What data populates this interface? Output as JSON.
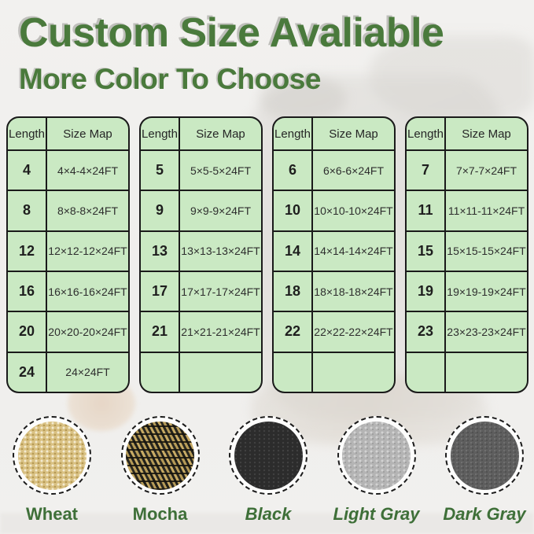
{
  "header": {
    "title": "Custom Size Avaliable",
    "subtitle": "More Color To Choose"
  },
  "tables": [
    {
      "columns": [
        "Length",
        "Size Map"
      ],
      "rows": [
        [
          "4",
          "4×4-4×24FT"
        ],
        [
          "8",
          "8×8-8×24FT"
        ],
        [
          "12",
          "12×12-12×24FT"
        ],
        [
          "16",
          "16×16-16×24FT"
        ],
        [
          "20",
          "20×20-20×24FT"
        ],
        [
          "24",
          "24×24FT"
        ]
      ]
    },
    {
      "columns": [
        "Length",
        "Size Map"
      ],
      "rows": [
        [
          "5",
          "5×5-5×24FT"
        ],
        [
          "9",
          "9×9-9×24FT"
        ],
        [
          "13",
          "13×13-13×24FT"
        ],
        [
          "17",
          "17×17-17×24FT"
        ],
        [
          "21",
          "21×21-21×24FT"
        ],
        [
          "",
          ""
        ]
      ]
    },
    {
      "columns": [
        "Length",
        "Size Map"
      ],
      "rows": [
        [
          "6",
          "6×6-6×24FT"
        ],
        [
          "10",
          "10×10-10×24FT"
        ],
        [
          "14",
          "14×14-14×24FT"
        ],
        [
          "18",
          "18×18-18×24FT"
        ],
        [
          "22",
          "22×22-22×24FT"
        ],
        [
          "",
          ""
        ]
      ]
    },
    {
      "columns": [
        "Length",
        "Size Map"
      ],
      "rows": [
        [
          "7",
          "7×7-7×24FT"
        ],
        [
          "11",
          "11×11-11×24FT"
        ],
        [
          "15",
          "15×15-15×24FT"
        ],
        [
          "19",
          "19×19-19×24FT"
        ],
        [
          "23",
          "23×23-23×24FT"
        ],
        [
          "",
          ""
        ]
      ]
    }
  ],
  "colors": [
    {
      "name": "Wheat",
      "base_hex": "#d9c183"
    },
    {
      "name": "Mocha",
      "base_hex": "#6b5a33"
    },
    {
      "name": "Black",
      "base_hex": "#2c2c2c"
    },
    {
      "name": "Light Gray",
      "base_hex": "#b4b4b4"
    },
    {
      "name": "Dark Gray",
      "base_hex": "#5e5e5e"
    }
  ],
  "theme": {
    "heading_green": "#4a7a3c",
    "label_green": "#3e6f38",
    "table_fill_green": "#cae9c3",
    "table_border": "#1a1a1a",
    "background": "#f1f0ee"
  }
}
